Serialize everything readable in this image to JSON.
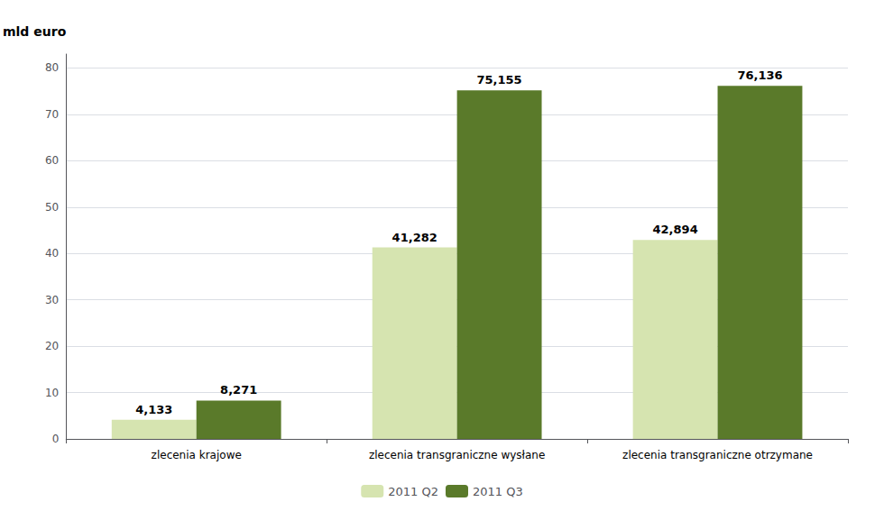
{
  "chart_data": {
    "type": "bar",
    "ylabel": "mld euro",
    "categories": [
      "zlecenia krajowe",
      "zlecenia transgraniczne wysłane",
      "zlecenia transgraniczne otrzymane"
    ],
    "series": [
      {
        "name": "2011 Q2",
        "color": "#d6e4b0",
        "values": [
          4.133,
          41.282,
          42.894
        ],
        "value_labels": [
          "4,133",
          "41,282",
          "42,894"
        ]
      },
      {
        "name": "2011 Q3",
        "color": "#5a7a2a",
        "values": [
          8.271,
          75.155,
          76.136
        ],
        "value_labels": [
          "8,271",
          "75,155",
          "76,136"
        ]
      }
    ],
    "ylim": [
      0,
      83
    ],
    "yticks": [
      0,
      10,
      20,
      30,
      40,
      50,
      60,
      70,
      80
    ],
    "grid": true,
    "legend": "bottom",
    "data_labels": true
  }
}
